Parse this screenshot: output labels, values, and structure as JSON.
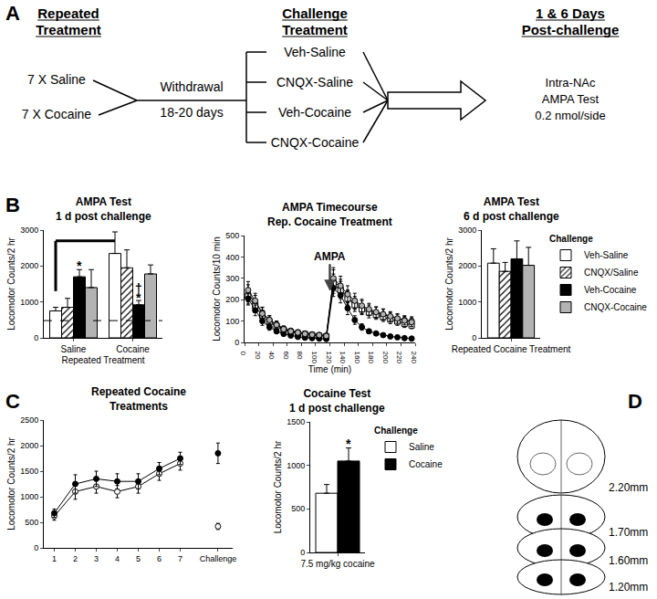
{
  "chart_data": [
    {
      "type": "bar",
      "title": [
        "AMPA Test",
        "1 d post challenge"
      ],
      "x_label": "Repeated Treatment",
      "y_label": "Locomotor Counts/2 hr",
      "categories": [
        "Saline",
        "Cocaine"
      ],
      "series": [
        {
          "name": "Veh-Saline",
          "color": "#ffffff",
          "values": [
            750,
            2350
          ],
          "error": [
            100,
            600
          ]
        },
        {
          "name": "CNQX/Saline",
          "color": "#ffffff",
          "marker": "hatched",
          "values": [
            850,
            1950
          ],
          "error": [
            250,
            500
          ]
        },
        {
          "name": "Veh-Cocaine",
          "color": "#000000",
          "values": [
            1700,
            920
          ],
          "error": [
            200,
            120
          ]
        },
        {
          "name": "CNQX-Cocaine",
          "color": "#b3b3b3",
          "values": [
            1400,
            1780
          ],
          "error": [
            500,
            250
          ]
        }
      ],
      "ylim": [
        0,
        3000
      ],
      "yticks": [
        0,
        1000,
        2000,
        3000
      ],
      "grid": false,
      "reference_line": {
        "value": 480,
        "line_style": "dashed"
      },
      "bracket": {
        "start": [
          "Saline",
          "Veh-Saline"
        ],
        "end": [
          "Cocaine",
          "Veh-Saline"
        ],
        "y": 2700,
        "low": 1300
      },
      "annotations": [
        {
          "text": "*",
          "category": "Saline",
          "series": "Veh-Cocaine",
          "y": 2000
        },
        {
          "text": "*",
          "category": "Cocaine",
          "series": "Veh-Cocaine",
          "y": 1130
        },
        {
          "text": "†",
          "category": "Cocaine",
          "series": "Veh-Cocaine",
          "y": 1380
        }
      ]
    },
    {
      "type": "line",
      "title": [
        "AMPA Timecourse",
        "Rep. Cocaine Treatment"
      ],
      "x_label": "Time (min)",
      "y_label": "Locomotor Counts/10 min",
      "x": [
        5,
        15,
        25,
        35,
        45,
        55,
        65,
        75,
        85,
        95,
        105,
        115,
        125,
        135,
        145,
        155,
        165,
        175,
        185,
        195,
        205,
        215,
        225,
        235
      ],
      "series": [
        {
          "name": "Veh-Saline",
          "color": "#ffffff",
          "marker": "circle",
          "values": [
            230,
            185,
            140,
            105,
            85,
            65,
            55,
            48,
            42,
            38,
            35,
            32,
            290,
            255,
            210,
            185,
            165,
            150,
            140,
            130,
            120,
            112,
            105,
            100
          ],
          "error": [
            40,
            35,
            25,
            20,
            15,
            12,
            10,
            10,
            8,
            8,
            8,
            8,
            50,
            40,
            35,
            30,
            30,
            25,
            25,
            25,
            20,
            20,
            20,
            20
          ]
        },
        {
          "name": "CNQX/Saline",
          "color": "#ffffff",
          "marker": "square",
          "values": [
            215,
            170,
            125,
            95,
            75,
            58,
            48,
            42,
            38,
            34,
            30,
            28,
            275,
            245,
            205,
            175,
            155,
            140,
            128,
            118,
            108,
            98,
            88,
            80
          ],
          "error": [
            35,
            30,
            25,
            18,
            15,
            12,
            10,
            8,
            8,
            8,
            6,
            6,
            45,
            40,
            35,
            30,
            25,
            25,
            20,
            20,
            20,
            18,
            18,
            16
          ]
        },
        {
          "name": "Veh-Cocaine",
          "color": "#000000",
          "marker": "circle",
          "values": [
            205,
            150,
            100,
            72,
            52,
            40,
            32,
            26,
            22,
            20,
            18,
            16,
            255,
            220,
            160,
            105,
            72,
            52,
            42,
            34,
            28,
            24,
            20,
            18
          ],
          "error": [
            30,
            25,
            20,
            15,
            10,
            8,
            6,
            5,
            5,
            4,
            4,
            4,
            40,
            35,
            30,
            20,
            15,
            10,
            8,
            6,
            5,
            5,
            4,
            4
          ]
        },
        {
          "name": "CNQX-Cocaine",
          "color": "#b3b3b3",
          "marker": "circle",
          "values": [
            245,
            195,
            135,
            105,
            82,
            62,
            52,
            46,
            40,
            36,
            34,
            30,
            300,
            265,
            225,
            195,
            172,
            155,
            142,
            132,
            122,
            112,
            102,
            95
          ],
          "error": [
            40,
            35,
            28,
            20,
            15,
            12,
            10,
            10,
            8,
            8,
            8,
            8,
            50,
            45,
            40,
            35,
            30,
            28,
            25,
            25,
            22,
            22,
            20,
            20
          ]
        }
      ],
      "xlim": [
        0,
        240
      ],
      "xticks": [
        0,
        20,
        40,
        60,
        80,
        100,
        120,
        140,
        160,
        180,
        200,
        220,
        240
      ],
      "ylim": [
        0,
        500
      ],
      "yticks": [
        0,
        100,
        200,
        300,
        400,
        500
      ],
      "grid": false,
      "annotations": [
        {
          "text": "AMPA",
          "x": 120,
          "y": 240
        }
      ]
    },
    {
      "type": "bar",
      "title": [
        "AMPA Test",
        "6 d post challenge"
      ],
      "y_label": "Locomotor Counts/2 hr",
      "categories": [
        "Repeated Cocaine Treatment"
      ],
      "series": [
        {
          "name": "Veh-Saline",
          "color": "#ffffff",
          "values": [
            2080
          ],
          "error": [
            400
          ]
        },
        {
          "name": "CNQX/Saline",
          "color": "#ffffff",
          "marker": "hatched",
          "values": [
            1850
          ],
          "error": [
            250
          ]
        },
        {
          "name": "Veh-Cocaine",
          "color": "#000000",
          "values": [
            2200
          ],
          "error": [
            500
          ]
        },
        {
          "name": "CNQX-Cocaine",
          "color": "#b3b3b3",
          "values": [
            2020
          ],
          "error": [
            500
          ]
        }
      ],
      "ylim": [
        0,
        3000
      ],
      "yticks": [
        0,
        1000,
        2000,
        3000
      ],
      "grid": false,
      "legend": "right",
      "legend_title": "Challenge"
    },
    {
      "type": "line",
      "title": [
        "Repeated Cocaine",
        "Treatments"
      ],
      "y_label": "Locomotor Counts/2 hr",
      "x": [
        1,
        2,
        3,
        4,
        5,
        6,
        7,
        null,
        8.8
      ],
      "series": [
        {
          "name": "Saline",
          "color": "#ffffff",
          "marker": "circle",
          "values": [
            620,
            1100,
            1200,
            1100,
            1200,
            1450,
            1650,
            null,
            420
          ],
          "error": [
            80,
            150,
            130,
            120,
            130,
            130,
            130,
            null,
            60
          ]
        },
        {
          "name": "Cocaine",
          "color": "#000000",
          "marker": "circle",
          "values": [
            680,
            1250,
            1350,
            1300,
            1300,
            1550,
            1750,
            null,
            1850
          ],
          "error": [
            80,
            180,
            150,
            150,
            150,
            120,
            120,
            null,
            200
          ]
        }
      ],
      "xlim": [
        0.5,
        9.5
      ],
      "xticks": [
        1,
        2,
        3,
        4,
        5,
        6,
        7,
        {
          "value": 8.8,
          "label": "Challenge"
        }
      ],
      "ylim": [
        0,
        2500
      ],
      "yticks": [
        0,
        500,
        1000,
        1500,
        2000,
        2500
      ],
      "grid": false
    },
    {
      "type": "bar",
      "title": [
        "Cocaine Test",
        "1 d post challenge"
      ],
      "y_label": "Locomotor Counts/2 hr",
      "categories": [
        "7.5 mg/kg cocaine"
      ],
      "series": [
        {
          "name": "Saline",
          "color": "#ffffff",
          "values": [
            680
          ],
          "error": [
            100
          ]
        },
        {
          "name": "Cocaine",
          "color": "#000000",
          "values": [
            1050
          ],
          "error": [
            150
          ]
        }
      ],
      "ylim": [
        0,
        1500
      ],
      "yticks": [
        0,
        500,
        1000,
        1500
      ],
      "grid": false,
      "legend": "right",
      "legend_title": "Challenge",
      "annotations": [
        {
          "text": "*",
          "category": "7.5 mg/kg cocaine",
          "series": "Cocaine",
          "y": 1250
        }
      ]
    }
  ],
  "diagram": {
    "stages": [
      {
        "title": [
          "Repeated",
          "Treatment"
        ],
        "items": [
          "7 X Saline",
          "7 X Cocaine"
        ]
      },
      {
        "items": [
          "Withdrawal",
          "18-20 days"
        ]
      },
      {
        "title": [
          "Challenge",
          "Treatment"
        ],
        "items": [
          "Veh-Saline",
          "CNQX-Saline",
          "Veh-Cocaine",
          "CNQX-Cocaine"
        ]
      },
      {
        "title": [
          "1 & 6 Days",
          "Post-challenge"
        ],
        "items": [
          "Intra-NAc",
          "AMPA Test",
          "0.2 nmol/side"
        ]
      }
    ]
  },
  "panel_labels": [
    "A",
    "B",
    "C",
    "D"
  ],
  "brain_sections": {
    "levels": [
      "2.20mm",
      "1.70mm",
      "1.60mm",
      "1.20mm"
    ]
  }
}
